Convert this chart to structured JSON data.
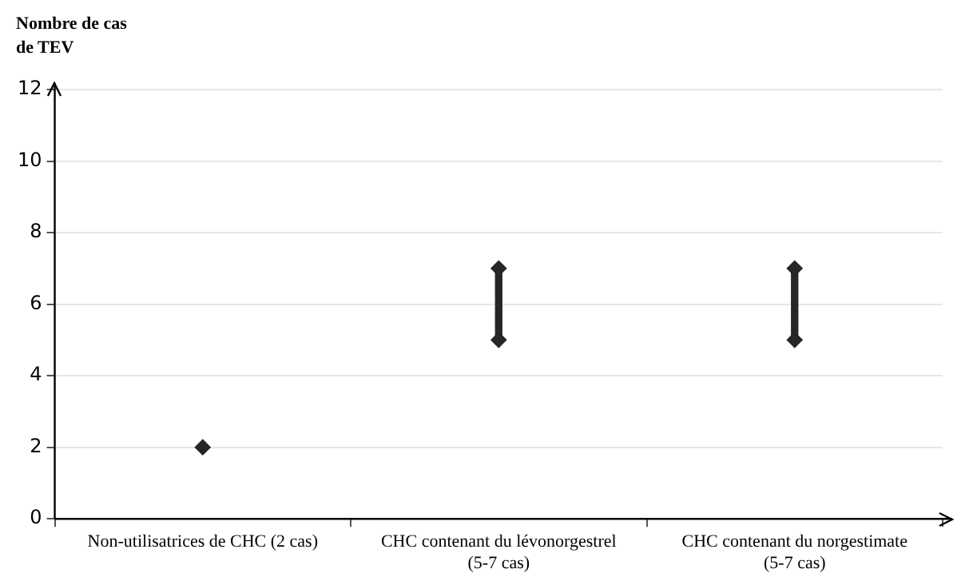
{
  "chart_data": {
    "type": "scatter",
    "ylabel": "Nombre de cas de TEV",
    "categories": [
      "Non-utilisatrices de CHC (2 cas)",
      "CHC contenant du lévonorgestrel (5-7 cas)",
      "CHC contenant du norgestimate (5-7 cas)"
    ],
    "series": [
      {
        "color": "#262626",
        "values": [
          2,
          5,
          5
        ]
      },
      {
        "color": "#262626",
        "values": [
          null,
          7,
          7
        ]
      },
      {
        "type": "bar",
        "color": "#262626",
        "base": [
          null,
          5,
          5
        ],
        "values": [
          null,
          2,
          2
        ]
      }
    ],
    "ylim": [
      0,
      12
    ],
    "yticks": [
      0,
      2,
      4,
      6,
      8,
      10,
      12
    ],
    "grid": "y",
    "marker": "diamond",
    "legend": false
  }
}
